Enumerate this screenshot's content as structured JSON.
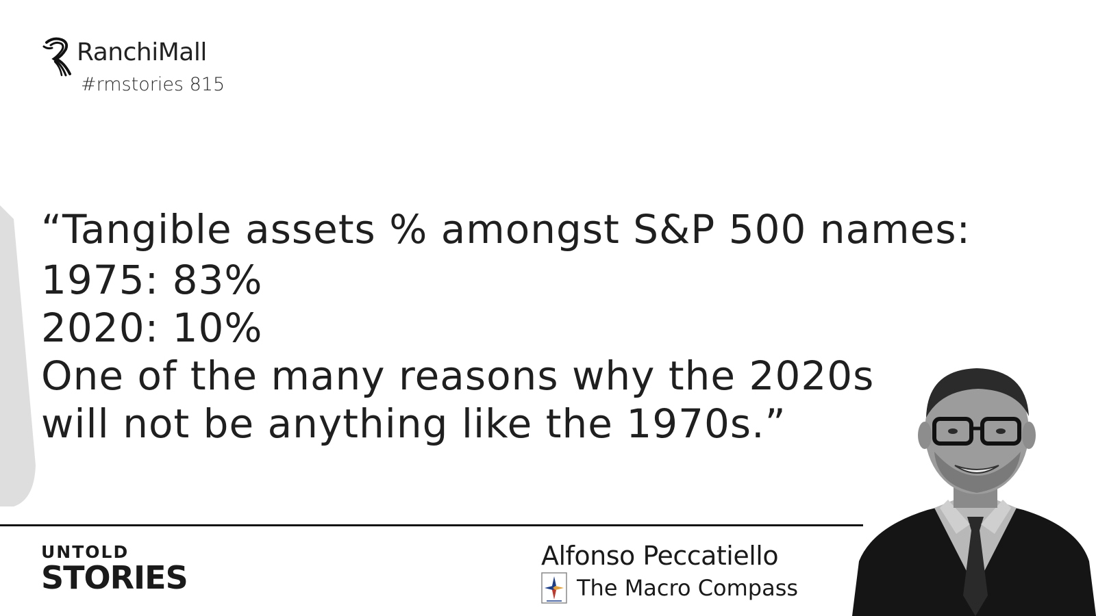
{
  "brand": {
    "name": "RanchiMall",
    "tag": "#rmstories 815",
    "logo_icon": "seahorse-logo-icon"
  },
  "quote": {
    "line1": "“Tangible assets % amongst S&P 500 names:",
    "line2": "1975: 83%",
    "line3": "2020: 10%",
    "line4": "One of the many reasons why the 2020s",
    "line5": "will not be anything like the 1970s.”"
  },
  "footer": {
    "series_top": "UNTOLD",
    "series_bottom": "STORIES",
    "author_name": "Alfonso Peccatiello",
    "author_org": "The Macro Compass",
    "org_logo_icon": "compass-logo-icon",
    "photo_icon": "portrait-photo"
  },
  "colors": {
    "background": "#ffffff",
    "text": "#1f1f1f",
    "accent_curve": "#dcdcdc"
  }
}
